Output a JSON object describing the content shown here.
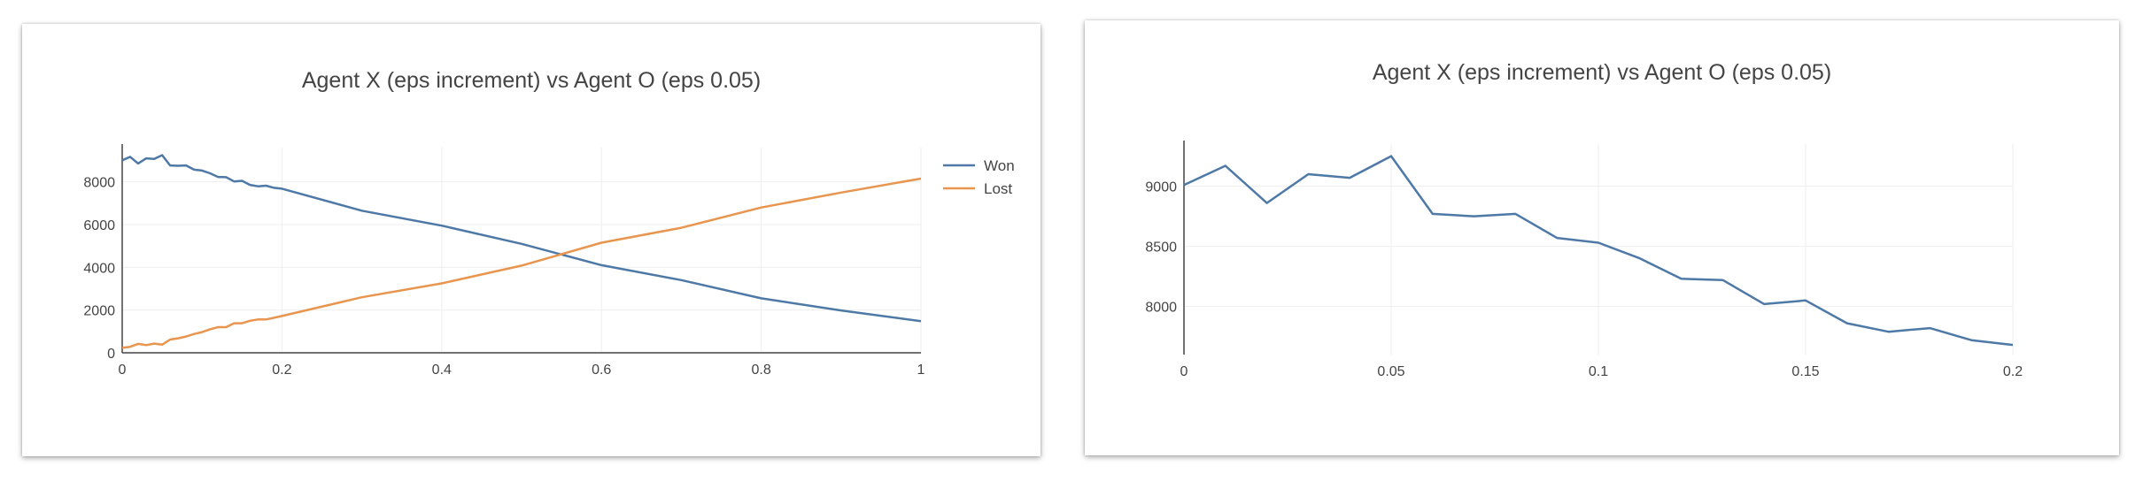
{
  "chart_data": [
    {
      "type": "line",
      "title": "Agent X (eps increment) vs Agent O (eps 0.05)",
      "xlabel": "",
      "ylabel": "",
      "xlim": [
        0,
        1
      ],
      "ylim": [
        0,
        9600
      ],
      "grid": true,
      "legend_position": "top-right",
      "x_ticks": [
        0,
        0.2,
        0.4,
        0.6,
        0.8,
        1
      ],
      "x_tick_labels": [
        "0",
        "0.2",
        "0.4",
        "0.6",
        "0.8",
        "1"
      ],
      "y_ticks": [
        0,
        2000,
        4000,
        6000,
        8000
      ],
      "y_tick_labels": [
        "0",
        "2000",
        "4000",
        "6000",
        "8000"
      ],
      "series": [
        {
          "name": "Won",
          "color": "#4e79a7",
          "x": [
            0,
            0.01,
            0.02,
            0.03,
            0.04,
            0.05,
            0.06,
            0.07,
            0.08,
            0.09,
            0.1,
            0.11,
            0.12,
            0.13,
            0.14,
            0.15,
            0.16,
            0.17,
            0.18,
            0.19,
            0.2,
            0.3,
            0.4,
            0.5,
            0.6,
            0.7,
            0.8,
            0.9,
            1
          ],
          "y": [
            9010,
            9170,
            8860,
            9100,
            9070,
            9250,
            8770,
            8750,
            8770,
            8570,
            8530,
            8400,
            8230,
            8220,
            8020,
            8050,
            7860,
            7790,
            7820,
            7720,
            7680,
            6650,
            5950,
            5100,
            4100,
            3400,
            2550,
            1980,
            1480
          ]
        },
        {
          "name": "Lost",
          "color": "#e8954f",
          "x": [
            0,
            0.01,
            0.02,
            0.03,
            0.04,
            0.05,
            0.06,
            0.07,
            0.08,
            0.09,
            0.1,
            0.11,
            0.12,
            0.13,
            0.14,
            0.15,
            0.16,
            0.17,
            0.18,
            0.19,
            0.2,
            0.3,
            0.4,
            0.5,
            0.6,
            0.7,
            0.8,
            0.9,
            1
          ],
          "y": [
            230,
            280,
            420,
            360,
            430,
            380,
            620,
            680,
            760,
            880,
            970,
            1100,
            1200,
            1200,
            1380,
            1380,
            1500,
            1560,
            1560,
            1640,
            1720,
            2600,
            3250,
            4080,
            5150,
            5850,
            6800,
            7500,
            8150
          ]
        }
      ]
    },
    {
      "type": "line",
      "title": "Agent X (eps increment) vs Agent O (eps 0.05)",
      "xlabel": "",
      "ylabel": "",
      "xlim": [
        0,
        0.2
      ],
      "ylim": [
        7600,
        9350
      ],
      "grid": true,
      "legend_position": "none",
      "x_ticks": [
        0,
        0.05,
        0.1,
        0.15,
        0.2
      ],
      "x_tick_labels": [
        "0",
        "0.05",
        "0.1",
        "0.15",
        "0.2"
      ],
      "y_ticks": [
        8000,
        8500,
        9000
      ],
      "y_tick_labels": [
        "8000",
        "8500",
        "9000"
      ],
      "series": [
        {
          "color": "#4e79a7",
          "x": [
            0,
            0.01,
            0.02,
            0.03,
            0.04,
            0.05,
            0.06,
            0.07,
            0.08,
            0.09,
            0.1,
            0.11,
            0.12,
            0.13,
            0.14,
            0.15,
            0.16,
            0.17,
            0.18,
            0.19,
            0.2
          ],
          "y": [
            9010,
            9170,
            8860,
            9100,
            9070,
            9250,
            8770,
            8750,
            8770,
            8570,
            8530,
            8400,
            8230,
            8220,
            8020,
            8050,
            7860,
            7790,
            7820,
            7720,
            7680
          ]
        }
      ]
    }
  ]
}
